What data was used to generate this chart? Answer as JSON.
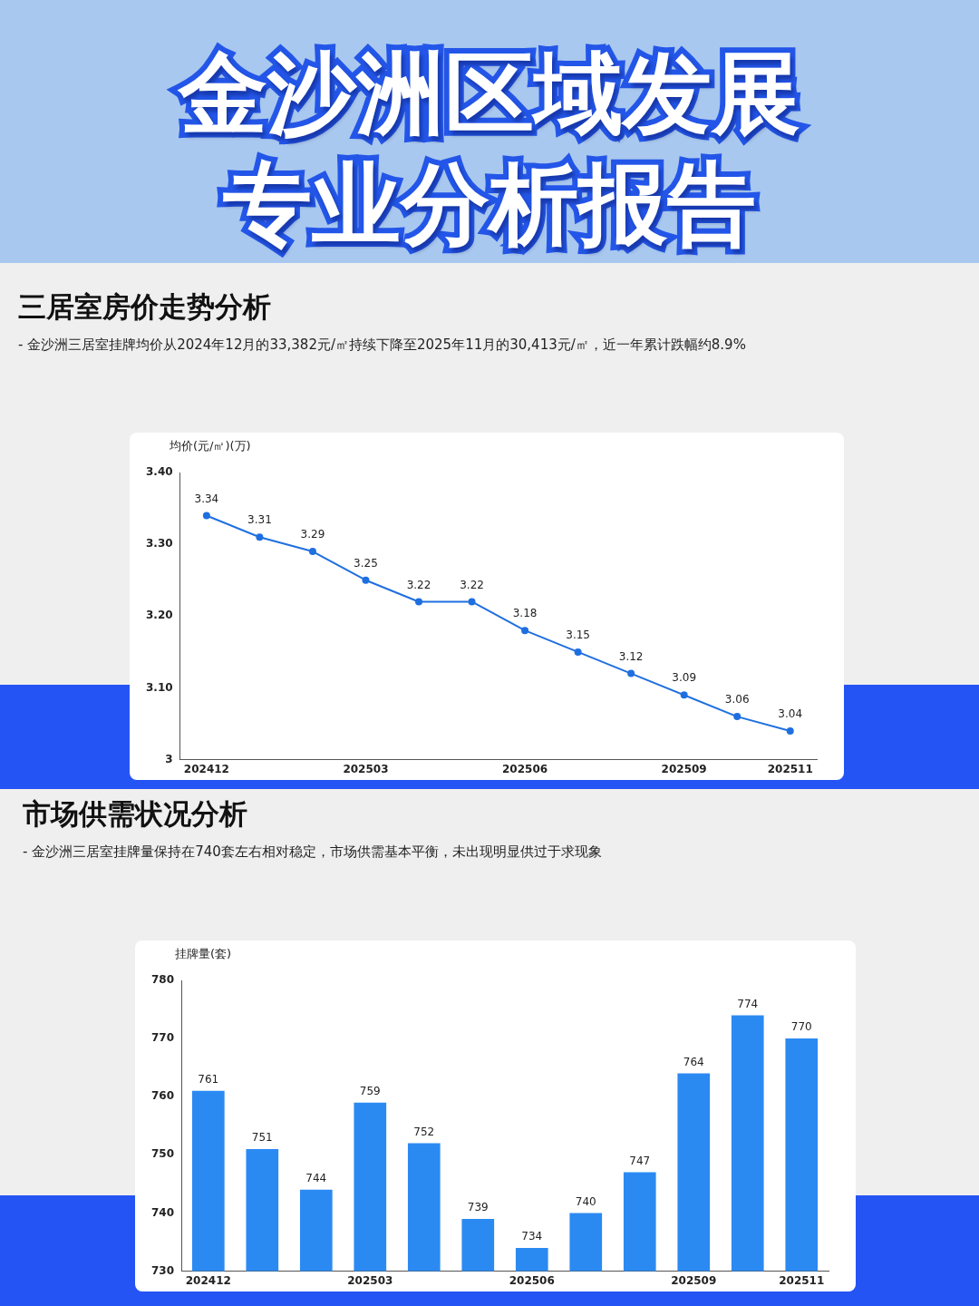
{
  "chart_data": [
    {
      "type": "line",
      "title": "三居室房价走势分析",
      "subtitle": "- 金沙洲三居室挂牌均价从2024年12月的33,382元/㎡持续下降至2025年11月的30,413元/㎡，近一年累计跌幅约8.9%",
      "annotations": [
        "金沙洲区域发展专业分析报告"
      ],
      "ylabel": "均价(元/㎡)(万)",
      "categories": [
        "202412",
        null,
        null,
        "202503",
        null,
        null,
        "202506",
        null,
        null,
        "202509",
        null,
        "202511"
      ],
      "values": [
        3.34,
        3.31,
        3.29,
        3.25,
        3.22,
        3.22,
        3.18,
        3.15,
        3.12,
        3.09,
        3.06,
        3.04
      ],
      "color": "#1f6fe0",
      "marker": "circle",
      "data_labels": true,
      "grid": false,
      "ylim": [
        3,
        3.4
      ],
      "yticks": [
        3,
        {
          "value": 3.1,
          "label": "3.10"
        },
        {
          "value": 3.2,
          "label": "3.20"
        },
        {
          "value": 3.3,
          "label": "3.30"
        },
        {
          "value": 3.4,
          "label": "3.40"
        }
      ]
    },
    {
      "type": "bar",
      "title": "市场供需状况分析",
      "subtitle": "- 金沙洲三居室挂牌量保持在740套左右相对稳定，市场供需基本平衡，未出现明显供过于求现象",
      "ylabel": "挂牌量(套)",
      "categories": [
        "202412",
        null,
        null,
        "202503",
        null,
        null,
        "202506",
        null,
        null,
        "202509",
        null,
        "202511"
      ],
      "values": [
        761,
        751,
        744,
        759,
        752,
        739,
        734,
        740,
        747,
        764,
        774,
        770
      ],
      "color": "#2b8af2",
      "data_labels": true,
      "grid": false,
      "ylim": [
        730,
        780
      ],
      "yticks": [
        730,
        740,
        750,
        760,
        770,
        780
      ]
    }
  ]
}
